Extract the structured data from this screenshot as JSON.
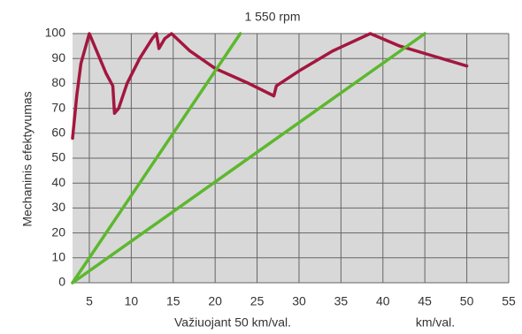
{
  "chart_data": {
    "type": "line",
    "subtitle": "1 550 rpm",
    "y_label": "Mechaninis efektyvumas",
    "x_label": "Važiuojant 50 km/val.",
    "x_unit": "km/val.",
    "xlim": [
      3,
      55
    ],
    "xticks": [
      5,
      10,
      15,
      20,
      25,
      30,
      35,
      40,
      45,
      50,
      55
    ],
    "ylim": [
      0,
      100
    ],
    "yticks": [
      0,
      10,
      20,
      30,
      40,
      50,
      60,
      70,
      80,
      90,
      100
    ],
    "grid": true,
    "series": [
      {
        "color": "#a3173f",
        "x": [
          3,
          3.5,
          4,
          5,
          6,
          7,
          7.8,
          8,
          8.5,
          9.5,
          11,
          12.5,
          13,
          13.3,
          14,
          14.8,
          17,
          20,
          24,
          27,
          27.3,
          30,
          34,
          38.5,
          42,
          46,
          50
        ],
        "values": [
          58,
          75,
          88,
          100,
          92,
          84,
          79,
          68,
          70,
          80,
          90,
          98,
          100,
          94,
          98,
          100,
          93,
          86,
          80,
          75,
          79,
          85,
          93,
          100,
          95,
          91,
          87
        ]
      },
      {
        "color": "#5cb82e",
        "x": [
          3,
          23
        ],
        "values": [
          0,
          100
        ]
      },
      {
        "color": "#5cb82e",
        "x": [
          3,
          45
        ],
        "values": [
          0,
          100
        ]
      }
    ]
  }
}
